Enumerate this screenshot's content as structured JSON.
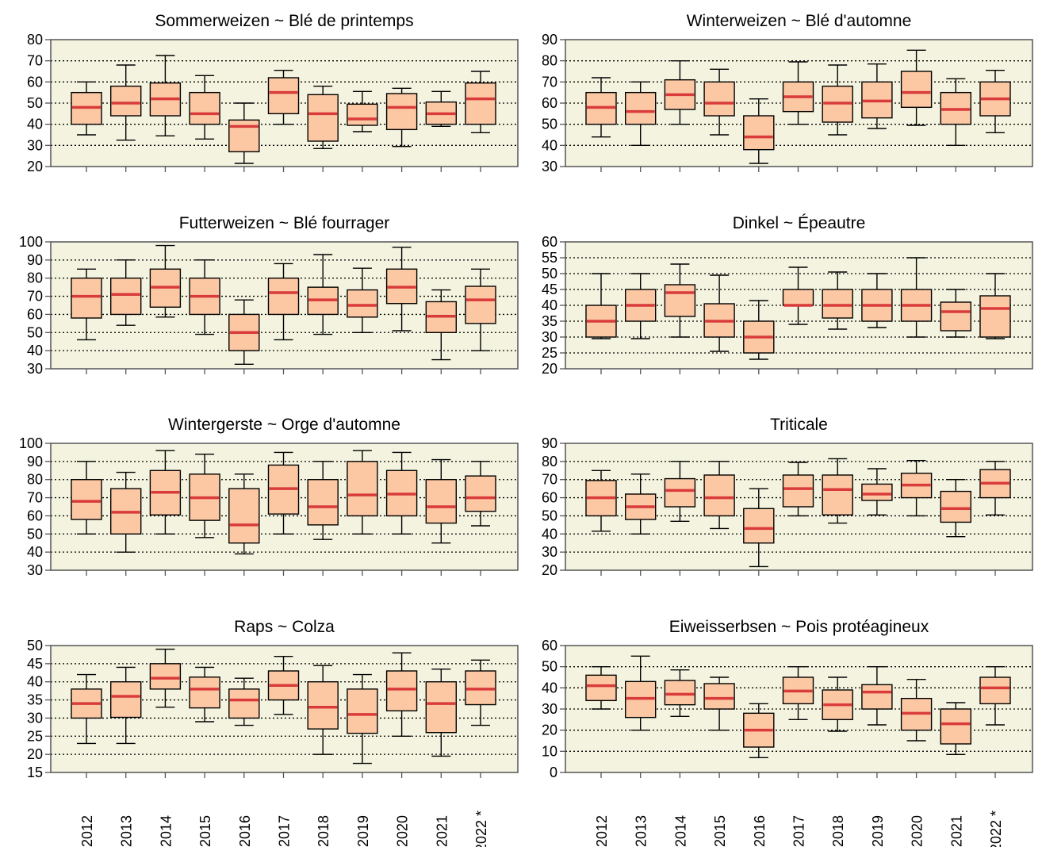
{
  "colors": {
    "plot_background": "#f3f3df",
    "box_fill": "#fcc8a4",
    "median": "#d93b3b",
    "outline": "#000000",
    "frame": "#555555"
  },
  "chart_data": [
    {
      "type": "boxplot",
      "title": "Sommerweizen   ~   Blé de printemps",
      "categories": [
        "2012",
        "2013",
        "2014",
        "2015",
        "2016",
        "2017",
        "2018",
        "2019",
        "2020",
        "2021",
        "2022 *"
      ],
      "ylim": [
        20,
        80
      ],
      "yticks": [
        20,
        30,
        40,
        50,
        60,
        70,
        80
      ],
      "grid_y": [
        30,
        40,
        50,
        60,
        70
      ],
      "grid": "dotted",
      "whisker_low": [
        35,
        32.5,
        34.5,
        33,
        21.5,
        40,
        28.5,
        36.5,
        29.5,
        39,
        36
      ],
      "q1": [
        40,
        44,
        44,
        40,
        27,
        45,
        32,
        39.5,
        37.5,
        40,
        40
      ],
      "median": [
        48,
        50,
        52,
        45,
        39,
        55,
        45,
        42.5,
        48,
        45,
        52
      ],
      "q3": [
        55,
        58,
        59.5,
        55,
        42,
        62,
        54,
        49.5,
        54.5,
        50.5,
        59.5
      ],
      "whisker_high": [
        60,
        68,
        72.5,
        63,
        50,
        65.5,
        58,
        55.5,
        57,
        55.5,
        65
      ]
    },
    {
      "type": "boxplot",
      "title": "Winterweizen   ~   Blé d'automne",
      "categories": [
        "2012",
        "2013",
        "2014",
        "2015",
        "2016",
        "2017",
        "2018",
        "2019",
        "2020",
        "2021",
        "2022 *"
      ],
      "ylim": [
        30,
        90
      ],
      "yticks": [
        30,
        40,
        50,
        60,
        70,
        80,
        90
      ],
      "grid_y": [
        40,
        50,
        60,
        70,
        80
      ],
      "grid": "dotted",
      "whisker_low": [
        44,
        40,
        50,
        45,
        31.5,
        50,
        45,
        48,
        49.5,
        40,
        46
      ],
      "q1": [
        50,
        50,
        57,
        54,
        38,
        56,
        51,
        53,
        58,
        50,
        54
      ],
      "median": [
        58,
        56,
        64,
        60,
        44,
        63,
        60,
        61,
        65,
        57,
        62
      ],
      "q3": [
        65,
        65,
        71,
        70,
        54,
        70,
        68,
        70,
        75,
        65,
        70
      ],
      "whisker_high": [
        72,
        70,
        80,
        76,
        62,
        79.5,
        78,
        78.5,
        85,
        71.5,
        75.5
      ]
    },
    {
      "type": "boxplot",
      "title": "Futterweizen   ~   Blé fourrager",
      "categories": [
        "2012",
        "2013",
        "2014",
        "2015",
        "2016",
        "2017",
        "2018",
        "2019",
        "2020",
        "2021",
        "2022 *"
      ],
      "ylim": [
        30,
        100
      ],
      "yticks": [
        30,
        40,
        50,
        60,
        70,
        80,
        90,
        100
      ],
      "grid_y": [
        40,
        50,
        60,
        70,
        80,
        90
      ],
      "grid": "dotted",
      "whisker_low": [
        46,
        54,
        58.5,
        49,
        32.5,
        46,
        49,
        50,
        51,
        35,
        40
      ],
      "q1": [
        58,
        60,
        64,
        60,
        40,
        60,
        60,
        58.5,
        66,
        50,
        55
      ],
      "median": [
        70,
        71,
        75,
        70,
        50,
        72,
        68,
        65,
        75,
        59,
        68
      ],
      "q3": [
        80,
        80,
        85,
        80,
        60,
        80,
        75,
        73.5,
        85,
        67,
        75.5
      ],
      "whisker_high": [
        85,
        90,
        98,
        90,
        68,
        88,
        93,
        85.5,
        97,
        73.5,
        85
      ]
    },
    {
      "type": "boxplot",
      "title": "Dinkel   ~   Épeautre",
      "categories": [
        "2012",
        "2013",
        "2014",
        "2015",
        "2016",
        "2017",
        "2018",
        "2019",
        "2020",
        "2021",
        "2022 *"
      ],
      "ylim": [
        20,
        60
      ],
      "yticks": [
        20,
        25,
        30,
        35,
        40,
        45,
        50,
        55,
        60
      ],
      "grid_y": [
        25,
        30,
        35,
        40,
        45,
        50,
        55
      ],
      "grid": "dotted",
      "whisker_low": [
        29.5,
        29.5,
        30,
        25.5,
        23,
        34,
        32.5,
        33,
        30,
        30,
        29.5
      ],
      "q1": [
        30,
        35,
        36.5,
        30,
        25,
        40,
        36,
        35,
        35,
        32,
        30
      ],
      "median": [
        35,
        40,
        44,
        35,
        30,
        40,
        40,
        40,
        40,
        38,
        39
      ],
      "q3": [
        40,
        45,
        46.5,
        40.5,
        35,
        45,
        45,
        45,
        45,
        41,
        43
      ],
      "whisker_high": [
        50,
        50,
        53,
        49.5,
        41.5,
        52,
        50.5,
        50,
        55,
        45,
        50
      ]
    },
    {
      "type": "boxplot",
      "title": "Wintergerste   ~   Orge d'automne",
      "categories": [
        "2012",
        "2013",
        "2014",
        "2015",
        "2016",
        "2017",
        "2018",
        "2019",
        "2020",
        "2021",
        "2022 *"
      ],
      "ylim": [
        30,
        100
      ],
      "yticks": [
        30,
        40,
        50,
        60,
        70,
        80,
        90,
        100
      ],
      "grid_y": [
        40,
        50,
        60,
        70,
        80,
        90
      ],
      "grid": "dotted",
      "whisker_low": [
        50,
        40,
        50,
        48,
        39,
        50,
        47,
        50,
        50,
        45,
        54.5
      ],
      "q1": [
        58,
        50,
        60.5,
        57.5,
        45,
        61,
        55,
        60,
        60,
        56,
        62.5
      ],
      "median": [
        68,
        62,
        73,
        70,
        55,
        75,
        65,
        71.5,
        72,
        65,
        70
      ],
      "q3": [
        80,
        75,
        85,
        83,
        75,
        88,
        80,
        90,
        85,
        80,
        82
      ],
      "whisker_high": [
        90,
        84,
        96,
        94,
        83,
        95,
        90,
        96,
        95,
        91,
        90
      ]
    },
    {
      "type": "boxplot",
      "title": "Triticale",
      "categories": [
        "2012",
        "2013",
        "2014",
        "2015",
        "2016",
        "2017",
        "2018",
        "2019",
        "2020",
        "2021",
        "2022 *"
      ],
      "ylim": [
        20,
        90
      ],
      "yticks": [
        20,
        30,
        40,
        50,
        60,
        70,
        80,
        90
      ],
      "grid_y": [
        30,
        40,
        50,
        60,
        70,
        80
      ],
      "grid": "dotted",
      "whisker_low": [
        41.5,
        40,
        47,
        43,
        22,
        50,
        46,
        50.5,
        50,
        38.5,
        50.5
      ],
      "q1": [
        50,
        48,
        55,
        50,
        35,
        55,
        50.5,
        58.5,
        60,
        46.5,
        60
      ],
      "median": [
        60,
        55,
        64,
        60,
        43,
        65,
        64.5,
        62,
        67,
        54,
        68
      ],
      "q3": [
        69.5,
        62,
        70.5,
        72.5,
        54,
        72.5,
        72.5,
        67.5,
        73.5,
        63.5,
        75.5
      ],
      "whisker_high": [
        75,
        73,
        80,
        80,
        65,
        79.5,
        81.5,
        76,
        80.5,
        70,
        80
      ]
    },
    {
      "type": "boxplot",
      "title": "Raps   ~   Colza",
      "categories": [
        "2012",
        "2013",
        "2014",
        "2015",
        "2016",
        "2017",
        "2018",
        "2019",
        "2020",
        "2021",
        "2022 *"
      ],
      "ylim": [
        15,
        50
      ],
      "yticks": [
        15,
        20,
        25,
        30,
        35,
        40,
        45,
        50
      ],
      "grid_y": [
        20,
        25,
        30,
        35,
        40,
        45
      ],
      "grid": "dotted",
      "whisker_low": [
        23,
        23,
        33,
        29,
        28,
        31,
        20,
        17.5,
        25,
        19.5,
        28
      ],
      "q1": [
        30,
        30.2,
        38,
        32.8,
        30,
        35,
        27,
        25.8,
        32,
        26,
        33.7
      ],
      "median": [
        34,
        36,
        41,
        38,
        35,
        39,
        33,
        31,
        38,
        34,
        38
      ],
      "q3": [
        38,
        40,
        45,
        41.3,
        38,
        43,
        40,
        38,
        43,
        40,
        43
      ],
      "whisker_high": [
        42,
        44,
        49,
        44,
        41,
        47,
        44.5,
        42,
        48,
        43.5,
        46
      ]
    },
    {
      "type": "boxplot",
      "title": "Eiweisserbsen   ~   Pois protéagineux",
      "categories": [
        "2012",
        "2013",
        "2014",
        "2015",
        "2016",
        "2017",
        "2018",
        "2019",
        "2020",
        "2021",
        "2022 *"
      ],
      "ylim": [
        0,
        60
      ],
      "yticks": [
        0,
        10,
        20,
        30,
        40,
        50,
        60
      ],
      "grid_y": [
        10,
        20,
        30,
        40,
        50
      ],
      "grid": "dotted",
      "whisker_low": [
        30,
        20,
        26.5,
        20,
        7,
        25,
        19.5,
        22.5,
        15,
        8.5,
        22.5
      ],
      "q1": [
        34,
        26,
        32,
        30,
        12,
        32.5,
        25,
        30,
        20,
        13.5,
        32.5
      ],
      "median": [
        41,
        35,
        37,
        35,
        20,
        38.5,
        32,
        38,
        28,
        23,
        40
      ],
      "q3": [
        46,
        43,
        43.5,
        42,
        28,
        45,
        39,
        41.5,
        35,
        30,
        45
      ],
      "whisker_high": [
        50,
        55,
        48.5,
        45,
        32.5,
        50,
        45,
        50,
        44,
        33,
        50
      ]
    }
  ]
}
